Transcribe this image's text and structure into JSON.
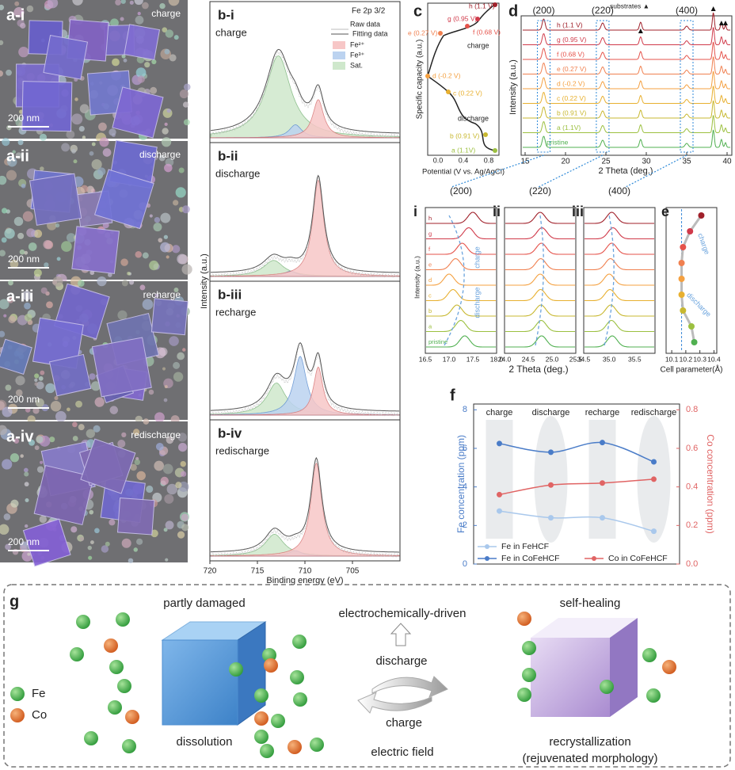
{
  "chart_data": [
    {
      "type": "line",
      "categories": [
        "charge",
        "discharge",
        "recharge",
        "redischarge"
      ],
      "ylabel": "Fe concentration (ppm)",
      "y2label": "Co concentration (ppm)",
      "ylim": [
        0,
        8.3
      ],
      "yticks": [
        0,
        2,
        4,
        6,
        8
      ],
      "y2lim": [
        0,
        0.83
      ],
      "y2ticks": [
        0.0,
        0.2,
        0.4,
        0.6,
        0.8
      ],
      "series": [
        {
          "name": "Fe in FeHCF",
          "color": "#a9c8ec",
          "values": [
            2.75,
            2.4,
            2.4,
            1.7
          ]
        },
        {
          "name": "Fe in CoFeHCF",
          "color": "#4a7cc8",
          "values": [
            6.25,
            5.8,
            6.3,
            5.3
          ]
        },
        {
          "name": "Co in CoFeHCF",
          "color": "#e06464",
          "axis": "y2",
          "values": [
            0.36,
            0.41,
            0.42,
            0.44
          ]
        }
      ]
    },
    {
      "type": "dot",
      "xlabel": "Cell parameter(Å)",
      "xlim": [
        10.06,
        10.42
      ],
      "xticks": [
        10.1,
        10.2,
        10.3,
        10.4
      ],
      "values": [
        10.26,
        10.24,
        10.18,
        10.17,
        10.17,
        10.17,
        10.18,
        10.23,
        10.31
      ],
      "colors": [
        "#50b050",
        "#9cc040",
        "#c8b830",
        "#e8b030",
        "#f4a040",
        "#f08050",
        "#e5534b",
        "#d03a4a",
        "#a0202a"
      ],
      "annotations": [
        "charge",
        "discharge"
      ]
    }
  ],
  "panel_a": {
    "labels": [
      "a-i",
      "a-ii",
      "a-iii",
      "a-iv"
    ],
    "states": [
      "charge",
      "discharge",
      "recharge",
      "redischarge"
    ],
    "scale_bar": "200 nm"
  },
  "panel_b": {
    "labels": [
      "b-i",
      "b-ii",
      "b-iii",
      "b-iv"
    ],
    "states": [
      "charge",
      "discharge",
      "recharge",
      "redischarge"
    ],
    "title": "Fe 2p 3/2",
    "legend": [
      "Raw data",
      "Fitting data",
      "Fe²⁺",
      "Fe³⁺",
      "Sat."
    ],
    "xticks": [
      720,
      715,
      710,
      705
    ],
    "xlabel": "Binding energy (eV)",
    "ylabel": "Intensity (a.u.)"
  },
  "panel_c": {
    "label": "c",
    "ylabel": "Specific capacity (a.u.)",
    "xlabel": "Potential (V vs. Ag/AgCl)",
    "xticks": [
      "0.0",
      "0.4",
      "0.8"
    ],
    "points": [
      "h (1.1 V)",
      "g (0.95 V)",
      "f (0.68 V)",
      "e (0.27 V)",
      "d (-0.2 V)",
      "c (0.22 V)",
      "b (0.91 V)",
      "a (1.1V)"
    ],
    "annotations": [
      "charge",
      "discharge"
    ]
  },
  "panel_d": {
    "label": "d",
    "peaks": [
      "(200)",
      "(220)",
      "(400)"
    ],
    "substrates": "substrates ▲",
    "traces": [
      "h (1.1 V)",
      "g (0.95 V)",
      "f (0.68 V)",
      "e (0.27 V)",
      "d (-0.2 V)",
      "c (0.22 V)",
      "b (0.91 V)",
      "a (1.1V)",
      "pristine"
    ],
    "xticks": [
      15,
      20,
      25,
      30,
      35,
      40
    ],
    "xlabel": "2 Theta (deg.)",
    "ylabel": "Intensity (a.u.)"
  },
  "panel_i": {
    "labels": [
      "i",
      "ii",
      "iii"
    ],
    "traces": [
      "h",
      "g",
      "f",
      "e",
      "d",
      "c",
      "b",
      "a",
      "pristine"
    ],
    "xticks": [
      [
        "16.5",
        "17.0",
        "17.5",
        "18.0"
      ],
      [
        "24.0",
        "24.5",
        "25.0",
        "25.5"
      ],
      [
        "34.5",
        "35.0",
        "35.5"
      ]
    ],
    "xlabel": "2 Theta (deg.)",
    "ylabel": "Intensity (a.u.)",
    "annotations": [
      "charge",
      "discharge"
    ]
  },
  "panel_e": {
    "label": "e"
  },
  "panel_f": {
    "label": "f"
  },
  "panel_g": {
    "label": "g",
    "legend": [
      "Fe",
      "Co"
    ],
    "left_top": "partly damaged",
    "left_bottom": "dissolution",
    "middle_top": "electrochemically-driven",
    "discharge": "discharge",
    "charge": "charge",
    "middle_bottom": "electric field",
    "right_top": "self-healing",
    "right_bottom": [
      "recrystallization",
      "(rejuvenated morphology)"
    ]
  }
}
